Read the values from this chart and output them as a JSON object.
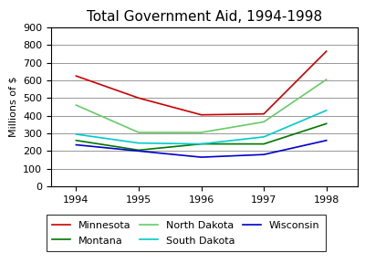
{
  "title": "Total Government Aid, 1994-1998",
  "ylabel": "Millions of $",
  "years": [
    1994,
    1995,
    1996,
    1997,
    1998
  ],
  "series": [
    {
      "name": "Minnesota",
      "values": [
        625,
        500,
        405,
        410,
        765
      ],
      "color": "#cc0000"
    },
    {
      "name": "Montana",
      "values": [
        260,
        205,
        240,
        240,
        355
      ],
      "color": "#007700"
    },
    {
      "name": "North Dakota",
      "values": [
        460,
        305,
        305,
        365,
        605
      ],
      "color": "#66cc66"
    },
    {
      "name": "South Dakota",
      "values": [
        295,
        245,
        240,
        280,
        430
      ],
      "color": "#00cccc"
    },
    {
      "name": "Wisconsin",
      "values": [
        235,
        200,
        165,
        180,
        260
      ],
      "color": "#0000cc"
    }
  ],
  "ylim": [
    0,
    900
  ],
  "yticks": [
    0,
    100,
    200,
    300,
    400,
    500,
    600,
    700,
    800,
    900
  ],
  "xlim": [
    1993.6,
    1998.5
  ],
  "legend_ncol": 3,
  "background_color": "#ffffff",
  "grid_color": "#888888",
  "title_fontsize": 11,
  "axis_fontsize": 8,
  "legend_fontsize": 8,
  "linewidth": 1.2
}
